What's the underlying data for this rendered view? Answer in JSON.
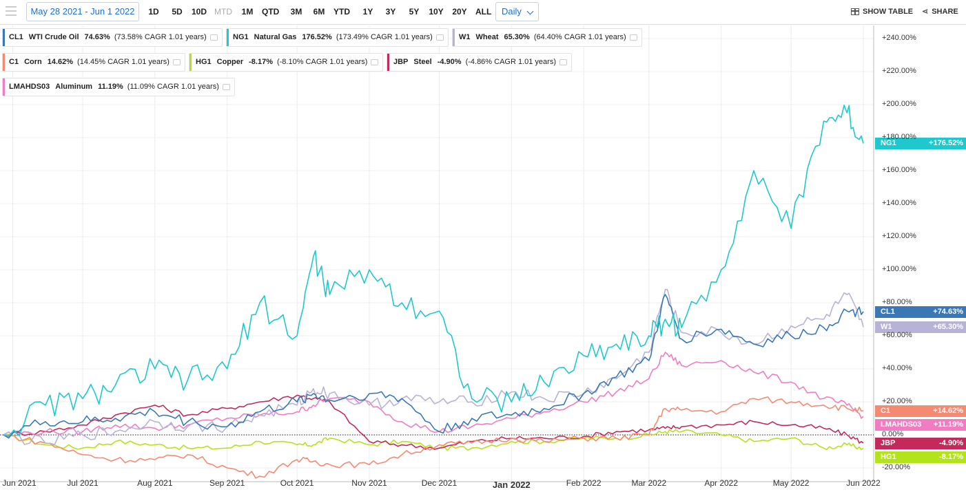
{
  "toolbar": {
    "date_range": "May 28 2021 - Jun 1 2022",
    "periods": [
      {
        "label": "1D",
        "enabled": true
      },
      {
        "label": "5D",
        "enabled": true
      },
      {
        "label": "10D",
        "enabled": true
      },
      {
        "label": "MTD",
        "enabled": false
      },
      {
        "label": "1M",
        "enabled": true
      },
      {
        "label": "QTD",
        "enabled": true
      },
      {
        "label": "3M",
        "enabled": true
      },
      {
        "label": "6M",
        "enabled": true
      },
      {
        "label": "YTD",
        "enabled": true
      },
      {
        "label": "1Y",
        "enabled": true
      },
      {
        "label": "3Y",
        "enabled": true
      },
      {
        "label": "5Y",
        "enabled": true
      },
      {
        "label": "10Y",
        "enabled": true
      },
      {
        "label": "20Y",
        "enabled": true
      },
      {
        "label": "ALL",
        "enabled": true
      }
    ],
    "frequency": "Daily",
    "show_table": "SHOW TABLE",
    "share": "SHARE"
  },
  "legend": [
    {
      "symbol": "CL1",
      "name": "WTI Crude Oil",
      "pct": "74.63%",
      "cagr": "(73.58% CAGR 1.01 years)",
      "color": "#3a78b5"
    },
    {
      "symbol": "NG1",
      "name": "Natural Gas",
      "pct": "176.52%",
      "cagr": "(173.49% CAGR 1.01 years)",
      "color": "#1fc8cc"
    },
    {
      "symbol": "W1",
      "name": "Wheat",
      "pct": "65.30%",
      "cagr": "(64.40% CAGR 1.01 years)",
      "color": "#b7b3d6"
    },
    {
      "symbol": "C1",
      "name": "Corn",
      "pct": "14.62%",
      "cagr": "(14.45% CAGR 1.01 years)",
      "color": "#f58a73"
    },
    {
      "symbol": "HG1",
      "name": "Copper",
      "pct": "-8.17%",
      "cagr": "(-8.10% CAGR 1.01 years)",
      "color": "#b3e31b"
    },
    {
      "symbol": "JBP",
      "name": "Steel",
      "pct": "-4.90%",
      "cagr": "(-4.86% CAGR 1.01 years)",
      "color": "#c22a5c"
    },
    {
      "symbol": "LMAHDS03",
      "name": "Aluminum",
      "pct": "11.19%",
      "cagr": "(11.09% CAGR 1.01 years)",
      "color": "#f07dc3"
    }
  ],
  "end_tags": [
    {
      "symbol": "NG1",
      "value": "+176.52%",
      "color": "#1fc8cc"
    },
    {
      "symbol": "CL1",
      "value": "+74.63%",
      "color": "#3a78b5"
    },
    {
      "symbol": "W1",
      "value": "+65.30%",
      "color": "#b7b3d6"
    },
    {
      "symbol": "C1",
      "value": "+14.62%",
      "color": "#f58a73"
    },
    {
      "symbol": "LMAHDS03",
      "value": "+11.19%",
      "color": "#f07dc3"
    },
    {
      "symbol": "JBP",
      "value": "-4.90%",
      "color": "#c22a5c"
    },
    {
      "symbol": "HG1",
      "value": "-8.17%",
      "color": "#b3e31b"
    }
  ],
  "chart_data": {
    "type": "line",
    "x_labels": [
      "Jun 2021",
      "Jul 2021",
      "Aug 2021",
      "Sep 2021",
      "Oct 2021",
      "Nov 2021",
      "Dec 2021",
      "Jan 2022",
      "Feb 2022",
      "Mar 2022",
      "Apr 2022",
      "May 2022",
      "Jun 2022"
    ],
    "x_label_bold": "Jan 2022",
    "y_ticks": [
      "-20.00%",
      "0.00%",
      "+20.00%",
      "+40.00%",
      "+60.00%",
      "+80.00%",
      "+100.00%",
      "+120.00%",
      "+140.00%",
      "+160.00%",
      "+180.00%",
      "+200.00%",
      "+220.00%",
      "+240.00%"
    ],
    "ylim": [
      -25,
      245
    ],
    "baseline": 0,
    "x": [
      "2021-05-28",
      "2021-06-15",
      "2021-07-01",
      "2021-07-15",
      "2021-08-01",
      "2021-08-15",
      "2021-09-01",
      "2021-09-15",
      "2021-10-01",
      "2021-10-08",
      "2021-10-15",
      "2021-11-01",
      "2021-11-15",
      "2021-12-01",
      "2021-12-15",
      "2022-01-01",
      "2022-01-15",
      "2022-02-01",
      "2022-02-15",
      "2022-03-01",
      "2022-03-08",
      "2022-03-15",
      "2022-04-01",
      "2022-04-15",
      "2022-05-01",
      "2022-05-15",
      "2022-05-25",
      "2022-06-01"
    ],
    "series": [
      {
        "name": "NG1",
        "color": "#1fc8cc",
        "values": [
          0,
          18,
          22,
          30,
          40,
          33,
          40,
          80,
          60,
          108,
          85,
          100,
          80,
          75,
          22,
          20,
          32,
          48,
          55,
          60,
          70,
          65,
          100,
          160,
          125,
          190,
          195,
          176.52
        ]
      },
      {
        "name": "CL1",
        "color": "#3a78b5",
        "values": [
          0,
          8,
          8,
          10,
          14,
          8,
          5,
          14,
          20,
          25,
          21,
          25,
          22,
          2,
          10,
          12,
          16,
          25,
          35,
          45,
          85,
          58,
          64,
          55,
          60,
          65,
          75,
          74.63
        ]
      },
      {
        "name": "W1",
        "color": "#b7b3d6",
        "values": [
          0,
          -5,
          0,
          2,
          8,
          5,
          5,
          12,
          18,
          28,
          25,
          18,
          22,
          20,
          20,
          26,
          22,
          25,
          34,
          50,
          88,
          62,
          62,
          55,
          66,
          70,
          85,
          65.3
        ]
      },
      {
        "name": "C1",
        "color": "#f58a73",
        "values": [
          0,
          -5,
          -12,
          -15,
          -15,
          -12,
          -20,
          -25,
          -15,
          -16,
          -18,
          -18,
          -12,
          -6,
          -5,
          -2,
          -4,
          -2,
          -2,
          0,
          16,
          15,
          14,
          22,
          20,
          18,
          16,
          14.62
        ]
      },
      {
        "name": "LMAHDS03",
        "color": "#f07dc3",
        "values": [
          0,
          2,
          2,
          6,
          4,
          6,
          10,
          12,
          14,
          18,
          22,
          20,
          8,
          2,
          5,
          10,
          14,
          20,
          26,
          34,
          50,
          42,
          45,
          38,
          32,
          22,
          18,
          11.19
        ]
      },
      {
        "name": "JBP",
        "color": "#c22a5c",
        "values": [
          0,
          2,
          6,
          12,
          18,
          12,
          16,
          20,
          24,
          22,
          20,
          -4,
          -6,
          -8,
          -4,
          -2,
          -2,
          -1,
          2,
          3,
          4,
          5,
          6,
          8,
          6,
          4,
          0,
          -4.9
        ]
      },
      {
        "name": "HG1",
        "color": "#b3e31b",
        "values": [
          0,
          -6,
          -8,
          -4,
          -6,
          -8,
          -8,
          -4,
          -6,
          -6,
          -2,
          -6,
          -4,
          -8,
          -8,
          -4,
          -4,
          -2,
          -2,
          0,
          2,
          2,
          0,
          -4,
          -2,
          -8,
          -6,
          -8.17
        ]
      }
    ]
  }
}
